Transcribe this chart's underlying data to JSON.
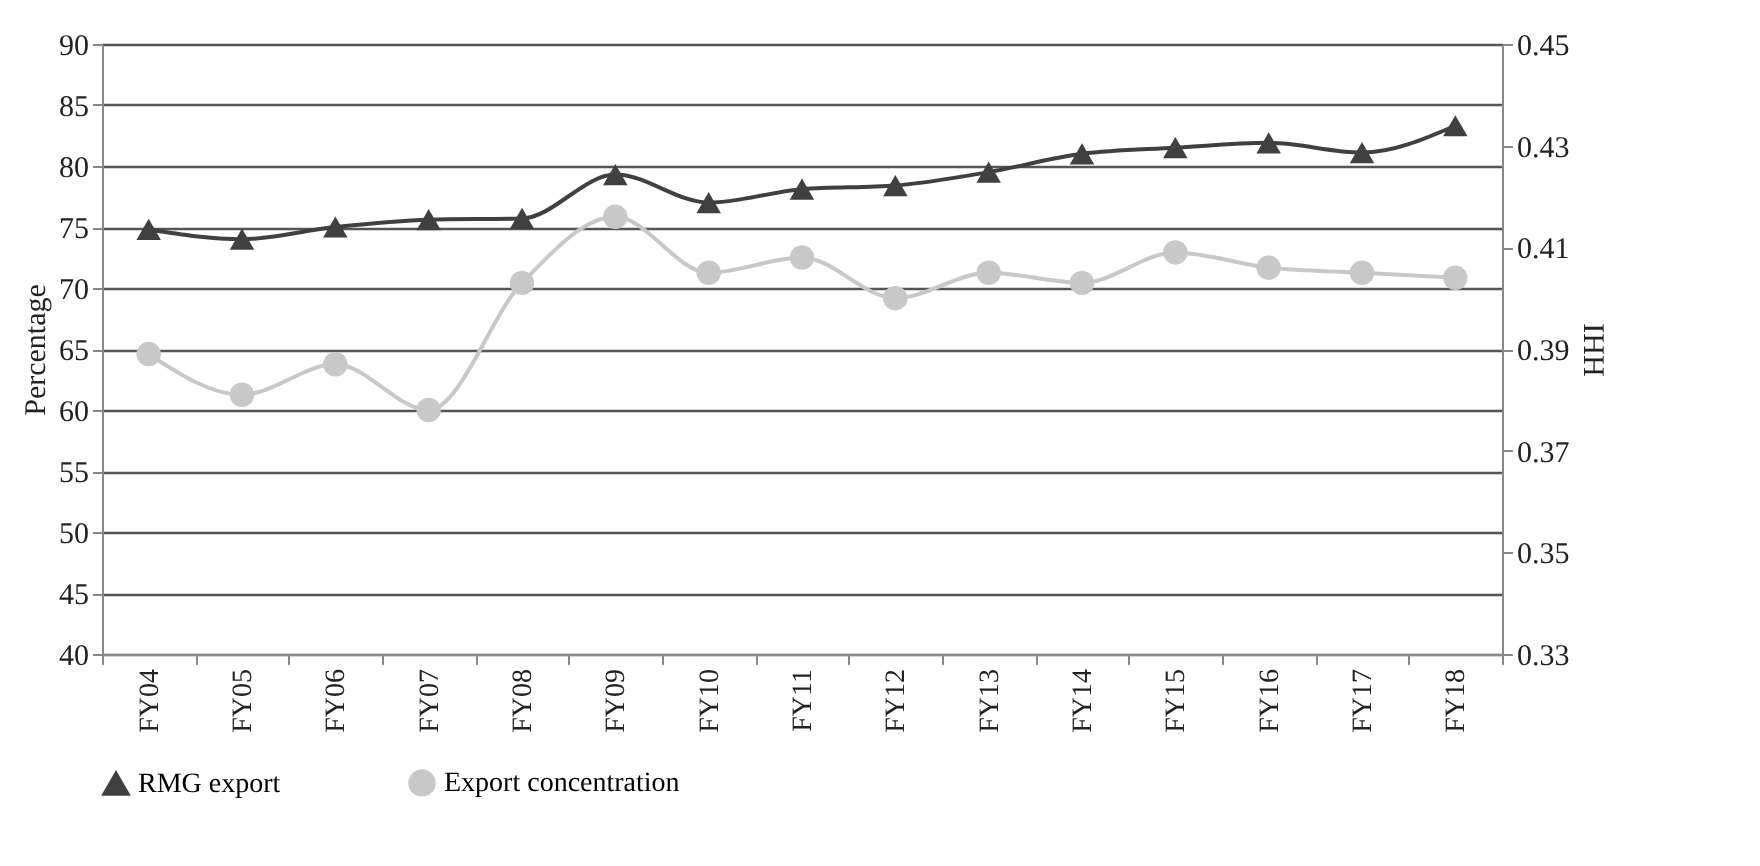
{
  "chart_data": {
    "type": "line",
    "ylabel": "Percentage",
    "y2label": "IHH",
    "categories": [
      "FY04",
      "FY05",
      "FY06",
      "FY07",
      "FY08",
      "FY09",
      "FY10",
      "FY11",
      "FY12",
      "FY13",
      "FY14",
      "FY15",
      "FY16",
      "FY17",
      "FY18"
    ],
    "series": [
      {
        "name": "RMG export",
        "color": "#404040",
        "marker": "triangle",
        "values": [
          74.8,
          74.0,
          75.0,
          75.6,
          75.7,
          79.3,
          77.0,
          78.1,
          78.4,
          79.5,
          81.0,
          81.5,
          81.9,
          81.1,
          83.3
        ]
      },
      {
        "name": "Export concentration",
        "color": "#c8c8c8",
        "marker": "circle",
        "axis": "y2",
        "values": [
          0.389,
          0.381,
          0.387,
          0.378,
          0.403,
          0.416,
          0.405,
          0.408,
          0.4,
          0.405,
          0.403,
          0.409,
          0.406,
          0.405,
          0.404
        ]
      }
    ],
    "ylim": [
      40,
      90
    ],
    "yticks": [
      40,
      45,
      50,
      55,
      60,
      65,
      70,
      75,
      80,
      85,
      90
    ],
    "y2lim": [
      0.33,
      0.45
    ],
    "y2ticks": [
      0.33,
      0.35,
      0.37,
      0.39,
      0.41,
      0.43,
      0.45
    ],
    "grid": "y",
    "legend": "bottom",
    "line_style": "solid"
  }
}
